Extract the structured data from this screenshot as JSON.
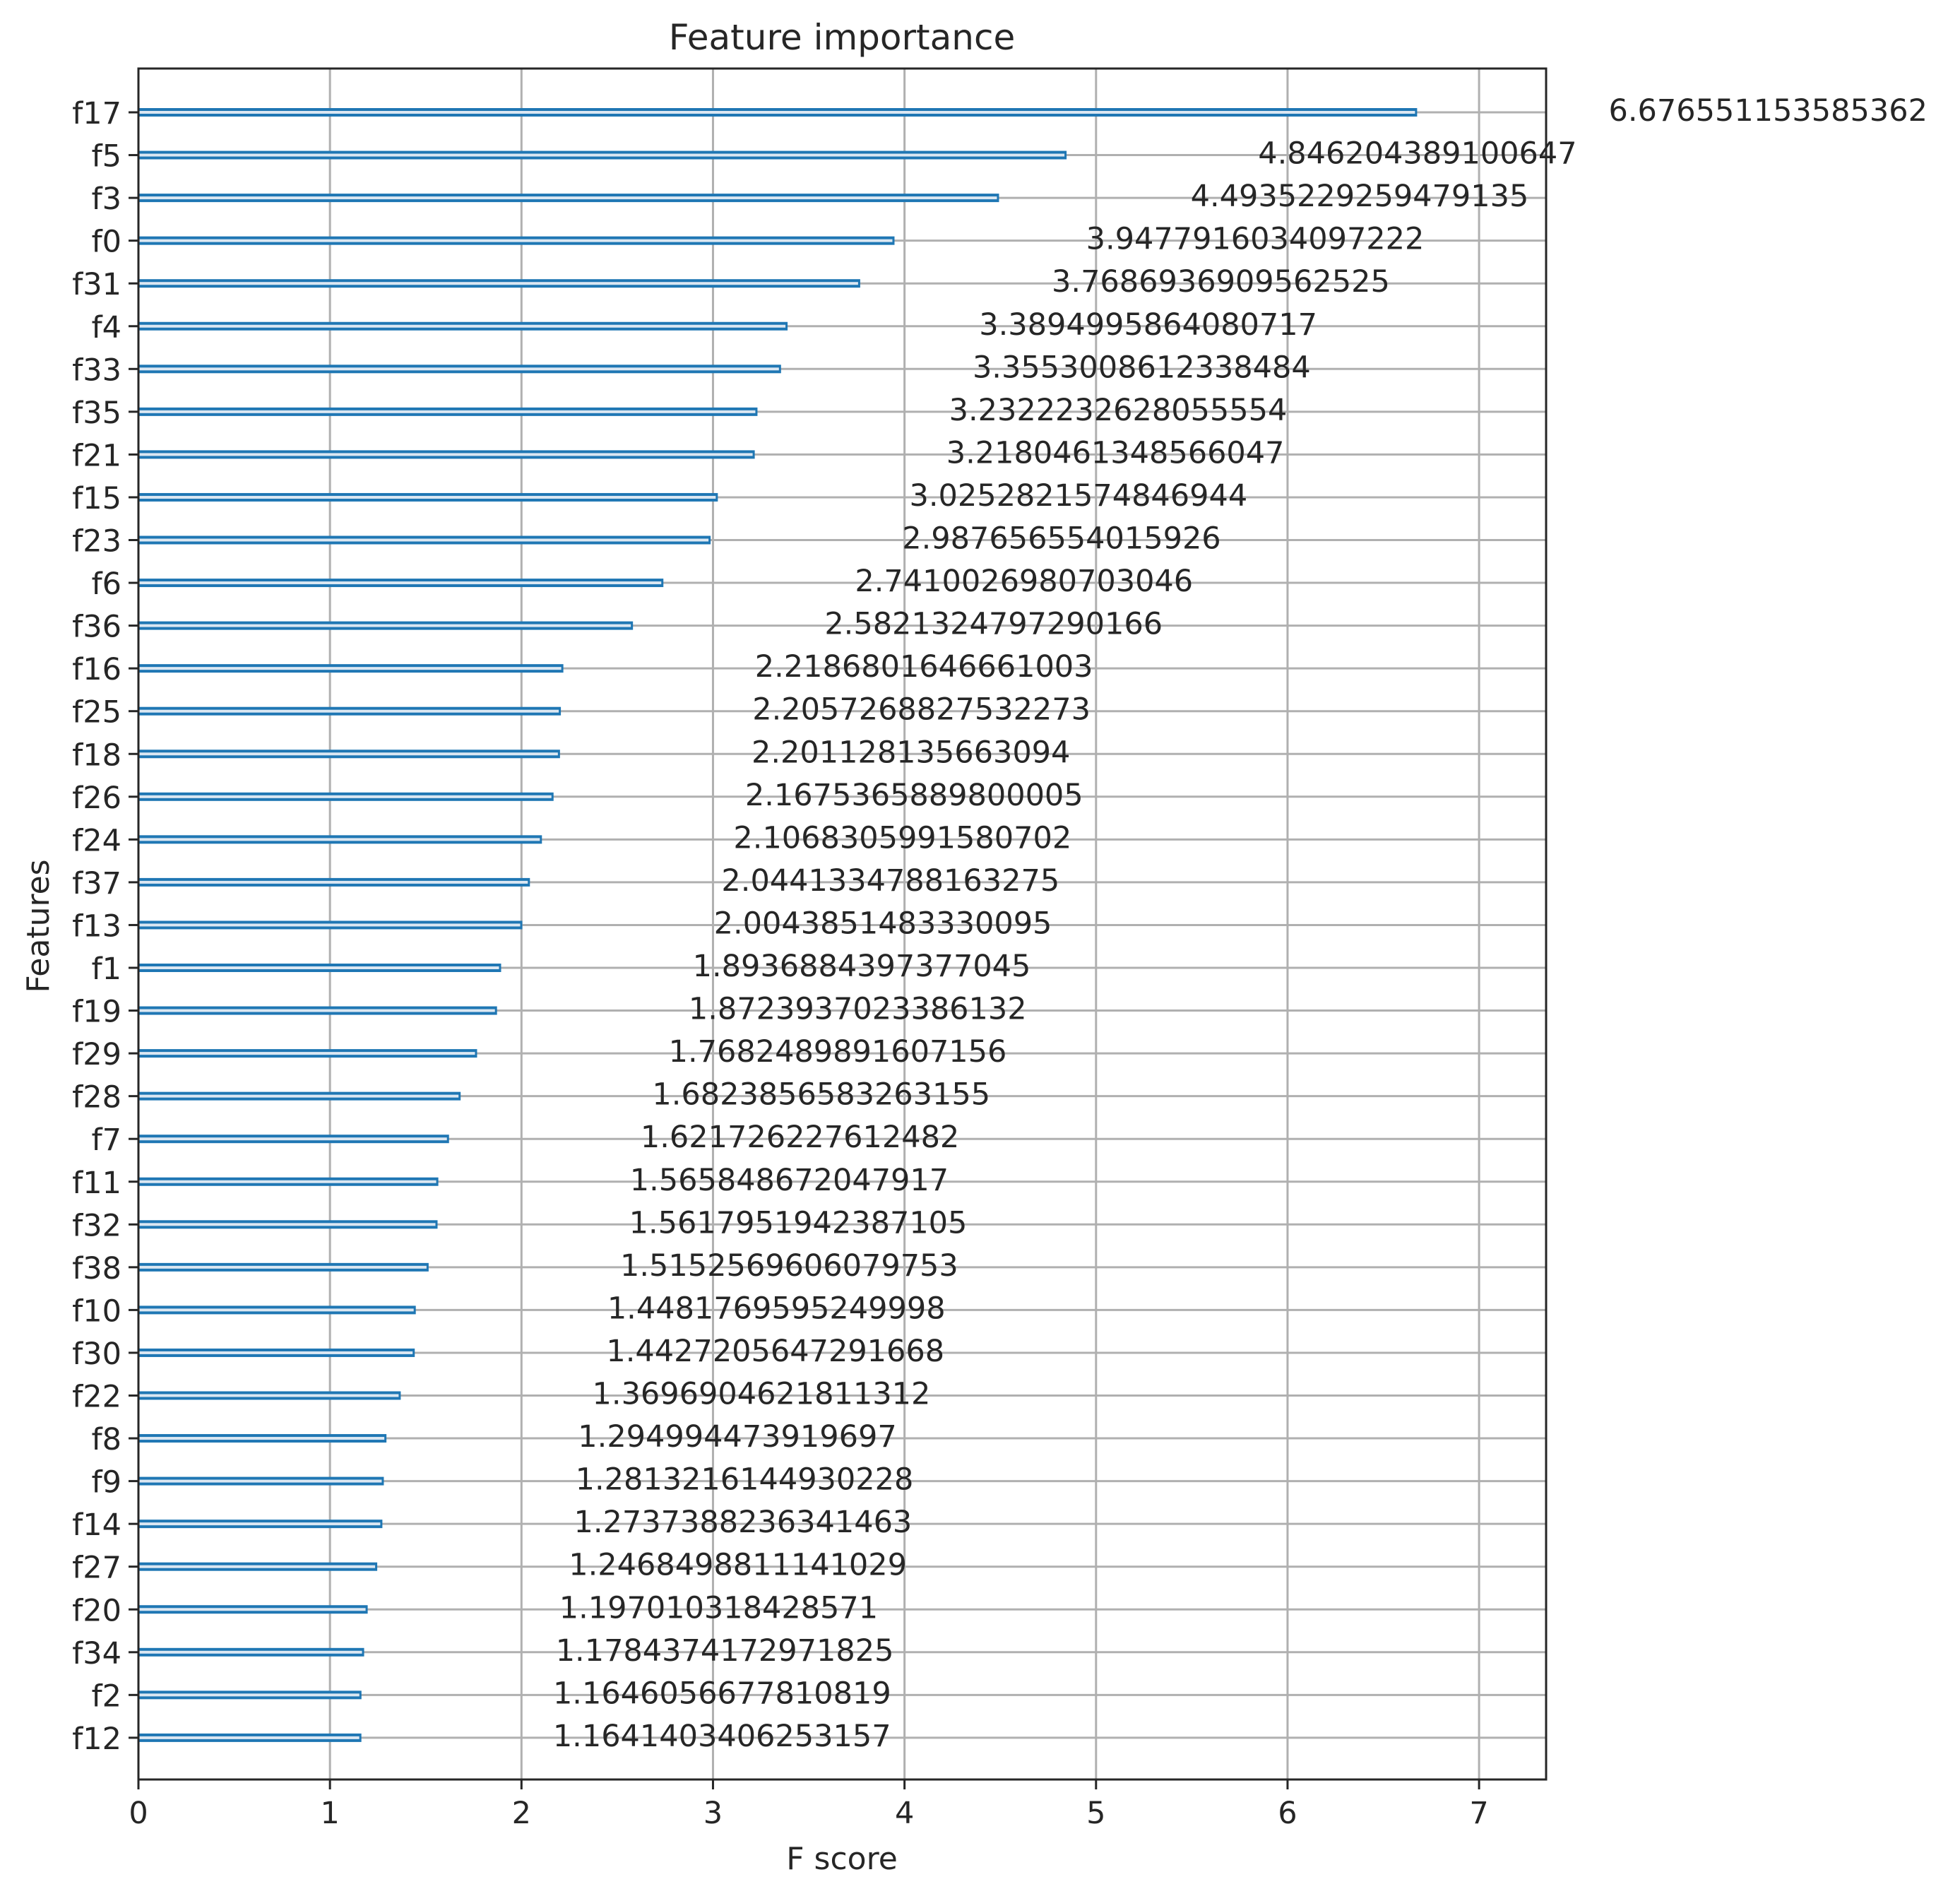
{
  "chart_data": {
    "type": "bar",
    "orientation": "horizontal",
    "title": "Feature importance",
    "xlabel": "F score",
    "ylabel": "Features",
    "xlim": [
      0,
      7.35
    ],
    "x_ticks": [
      0,
      1,
      2,
      3,
      4,
      5,
      6,
      7
    ],
    "grid": true,
    "bar_color": "#1f77b4",
    "categories": [
      "f17",
      "f5",
      "f3",
      "f0",
      "f31",
      "f4",
      "f33",
      "f35",
      "f21",
      "f15",
      "f23",
      "f6",
      "f36",
      "f16",
      "f25",
      "f18",
      "f26",
      "f24",
      "f37",
      "f13",
      "f1",
      "f19",
      "f29",
      "f28",
      "f7",
      "f11",
      "f32",
      "f38",
      "f10",
      "f30",
      "f22",
      "f8",
      "f9",
      "f14",
      "f27",
      "f20",
      "f34",
      "f2",
      "f12"
    ],
    "values": [
      6.676551153585362,
      4.846204389100647,
      4.4935229259479135,
      3.9477916034097222,
      3.7686936909562525,
      3.3894995864080717,
      3.3553008612338484,
      3.2322232628055554,
      3.2180461348566047,
      3.0252821574846944,
      2.987656554015926,
      2.7410026980703046,
      2.5821324797290166,
      2.2186801646661003,
      2.2057268827532273,
      2.201128135663094,
      2.1675365889800005,
      2.1068305991580702,
      2.0441334788163275,
      2.0043851483330095,
      1.8936884397377045,
      1.8723937023386132,
      1.7682489891607156,
      1.6823856583263155,
      1.621726227612482,
      1.565848672047917,
      1.5617951942387105,
      1.5152569606079753,
      1.4481769595249998,
      1.4427205647291668,
      1.3696904621811312,
      1.294994473919697,
      1.2813216144930228,
      1.2737388236341463,
      1.2468498811141029,
      1.197010318428571,
      1.1784374172971825,
      1.1646056677810819,
      1.1641403406253157
    ],
    "value_labels": [
      "6.676551153585362",
      "4.846204389100647",
      "4.4935229259479135",
      "3.9477916034097222",
      "3.7686936909562525",
      "3.3894995864080717",
      "3.3553008612338484",
      "3.2322232628055554",
      "3.2180461348566047",
      "3.0252821574846944",
      "2.987656554015926",
      "2.7410026980703046",
      "2.5821324797290166",
      "2.2186801646661003",
      "2.2057268827532273",
      "2.201128135663094",
      "2.1675365889800005",
      "2.1068305991580702",
      "2.0441334788163275",
      "2.0043851483330095",
      "1.8936884397377045",
      "1.8723937023386132",
      "1.7682489891607156",
      "1.6823856583263155",
      "1.621726227612482",
      "1.565848672047917",
      "1.5617951942387105",
      "1.5152569606079753",
      "1.4481769595249998",
      "1.4427205647291668",
      "1.3696904621811312",
      "1.294994473919697",
      "1.2813216144930228",
      "1.2737388236341463",
      "1.2468498811141029",
      "1.197010318428571",
      "1.1784374172971825",
      "1.1646056677810819",
      "1.1641403406253157"
    ]
  }
}
